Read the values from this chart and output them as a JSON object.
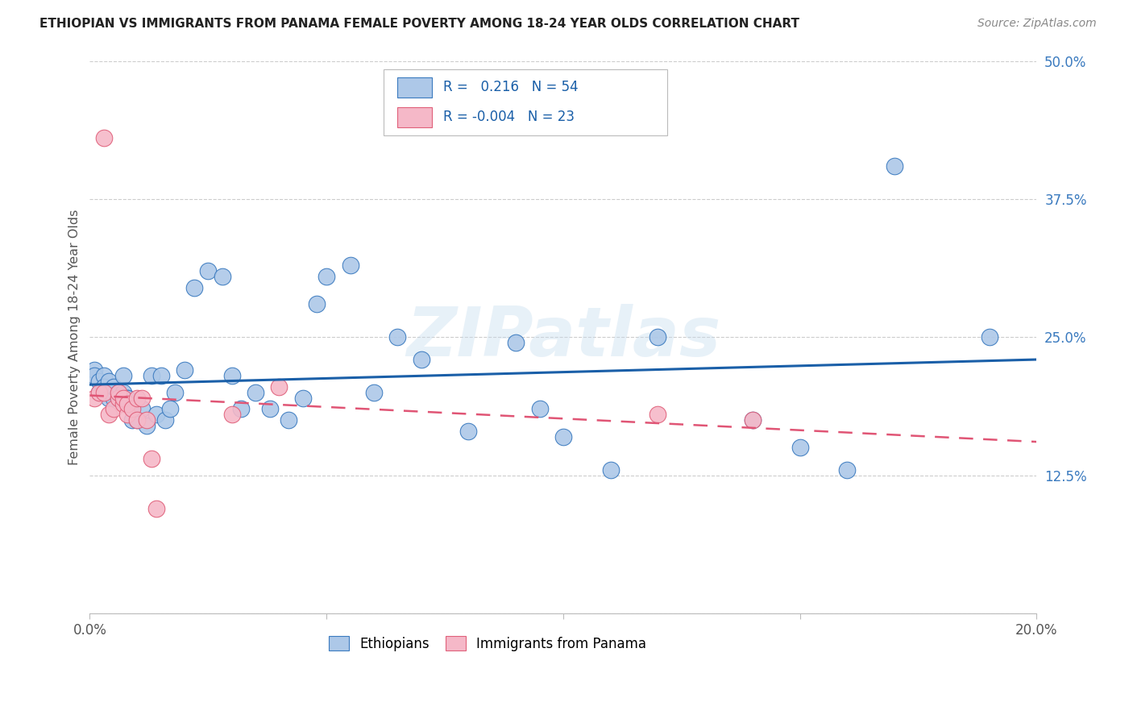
{
  "title": "ETHIOPIAN VS IMMIGRANTS FROM PANAMA FEMALE POVERTY AMONG 18-24 YEAR OLDS CORRELATION CHART",
  "source": "Source: ZipAtlas.com",
  "ylabel": "Female Poverty Among 18-24 Year Olds",
  "xlim": [
    0.0,
    0.2
  ],
  "ylim": [
    0.0,
    0.5
  ],
  "xtick_vals": [
    0.0,
    0.05,
    0.1,
    0.15,
    0.2
  ],
  "xtick_labels": [
    "0.0%",
    "",
    "",
    "",
    "20.0%"
  ],
  "ytick_vals": [
    0.0,
    0.125,
    0.25,
    0.375,
    0.5
  ],
  "ytick_labels": [
    "",
    "12.5%",
    "25.0%",
    "37.5%",
    "50.0%"
  ],
  "color_eth_face": "#adc8e8",
  "color_eth_edge": "#3a7abf",
  "color_pan_face": "#f5b8c8",
  "color_pan_edge": "#e0607a",
  "color_trend_eth": "#1a5fa8",
  "color_trend_pan": "#e05575",
  "color_grid": "#cccccc",
  "color_ytick": "#3a7abf",
  "watermark": "ZIPatlas",
  "legend_r1": "R =   0.216   N = 54",
  "legend_r2": "R = -0.004   N = 23",
  "legend_eth": "Ethiopians",
  "legend_pan": "Immigrants from Panama",
  "eth_x": [
    0.001,
    0.001,
    0.002,
    0.002,
    0.003,
    0.003,
    0.004,
    0.004,
    0.005,
    0.005,
    0.006,
    0.006,
    0.007,
    0.007,
    0.008,
    0.008,
    0.009,
    0.009,
    0.01,
    0.011,
    0.012,
    0.013,
    0.014,
    0.015,
    0.016,
    0.017,
    0.018,
    0.02,
    0.022,
    0.025,
    0.028,
    0.03,
    0.032,
    0.035,
    0.038,
    0.042,
    0.045,
    0.048,
    0.05,
    0.055,
    0.06,
    0.065,
    0.07,
    0.08,
    0.09,
    0.095,
    0.1,
    0.11,
    0.12,
    0.14,
    0.15,
    0.16,
    0.17,
    0.19
  ],
  "eth_y": [
    0.22,
    0.215,
    0.2,
    0.21,
    0.215,
    0.205,
    0.195,
    0.21,
    0.195,
    0.205,
    0.2,
    0.195,
    0.215,
    0.2,
    0.195,
    0.195,
    0.185,
    0.175,
    0.175,
    0.185,
    0.17,
    0.215,
    0.18,
    0.215,
    0.175,
    0.185,
    0.2,
    0.22,
    0.295,
    0.31,
    0.305,
    0.215,
    0.185,
    0.2,
    0.185,
    0.175,
    0.195,
    0.28,
    0.305,
    0.315,
    0.2,
    0.25,
    0.23,
    0.165,
    0.245,
    0.185,
    0.16,
    0.13,
    0.25,
    0.175,
    0.15,
    0.13,
    0.405,
    0.25
  ],
  "pan_x": [
    0.001,
    0.002,
    0.003,
    0.003,
    0.004,
    0.005,
    0.006,
    0.006,
    0.007,
    0.007,
    0.008,
    0.008,
    0.009,
    0.01,
    0.01,
    0.011,
    0.012,
    0.013,
    0.014,
    0.03,
    0.04,
    0.12,
    0.14
  ],
  "pan_y": [
    0.195,
    0.2,
    0.43,
    0.2,
    0.18,
    0.185,
    0.195,
    0.2,
    0.19,
    0.195,
    0.18,
    0.19,
    0.185,
    0.175,
    0.195,
    0.195,
    0.175,
    0.14,
    0.095,
    0.18,
    0.205,
    0.18,
    0.175
  ]
}
